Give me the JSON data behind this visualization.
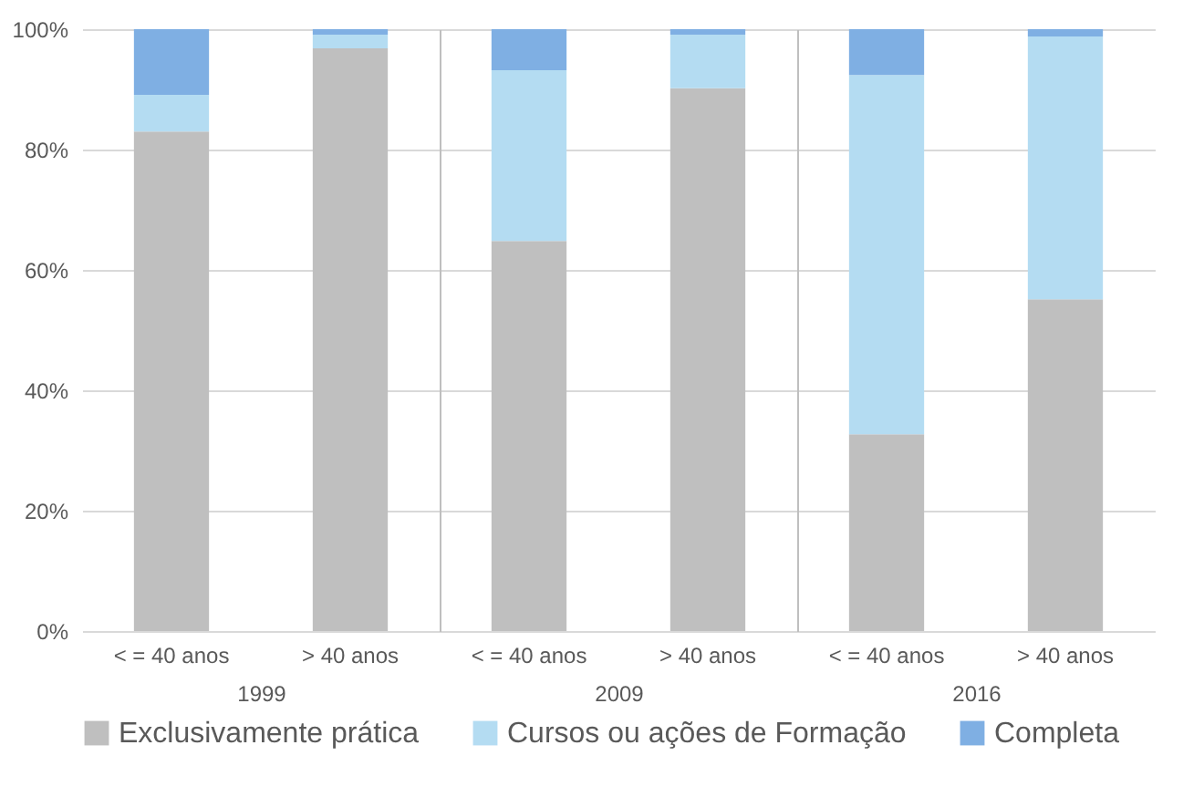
{
  "chart_data": [
    {
      "type": "bar",
      "stacked": true,
      "xlabel": "1999",
      "categories": [
        "< = 40 anos",
        "> 40 anos"
      ],
      "ylim": [
        0,
        100
      ],
      "yticks": [
        {
          "value": 0,
          "label": "0%"
        },
        {
          "value": 20,
          "label": "20%"
        },
        {
          "value": 40,
          "label": "40%"
        },
        {
          "value": 60,
          "label": "60%"
        },
        {
          "value": 80,
          "label": "80%"
        },
        {
          "value": 100,
          "label": "100%"
        }
      ],
      "grid": "y",
      "legend": "bottom",
      "series": [
        {
          "name": "Exclusivamente prática",
          "color": "#bfbfbf",
          "values": [
            83.0,
            96.8
          ]
        },
        {
          "name": "Cursos ou ações de Formação",
          "color": "#b4dcf2",
          "values": [
            6.1,
            2.3
          ]
        },
        {
          "name": "Completa",
          "color": "#7fafe3",
          "values": [
            10.9,
            0.9
          ]
        }
      ]
    },
    {
      "type": "bar",
      "stacked": true,
      "xlabel": "2009",
      "categories": [
        "< = 40 anos",
        "> 40 anos"
      ],
      "ylim": [
        0,
        100
      ],
      "yticks": [
        {
          "value": 0,
          "label": null
        },
        {
          "value": 20,
          "label": null
        },
        {
          "value": 40,
          "label": null
        },
        {
          "value": 60,
          "label": null
        },
        {
          "value": 80,
          "label": null
        },
        {
          "value": 100,
          "label": null
        }
      ],
      "grid": "y",
      "legend": "bottom",
      "tick_labels": "x",
      "series": [
        {
          "name": "Exclusivamente prática",
          "color": "#bfbfbf",
          "values": [
            64.8,
            90.2
          ]
        },
        {
          "name": "Cursos ou ações de Formação",
          "color": "#b4dcf2",
          "values": [
            28.4,
            8.9
          ]
        },
        {
          "name": "Completa",
          "color": "#7fafe3",
          "values": [
            6.8,
            0.9
          ]
        }
      ]
    },
    {
      "type": "bar",
      "stacked": true,
      "xlabel": "2016",
      "categories": [
        "< = 40 anos",
        "> 40 anos"
      ],
      "ylim": [
        0,
        100
      ],
      "yticks": [
        {
          "value": 0,
          "label": null
        },
        {
          "value": 20,
          "label": null
        },
        {
          "value": 40,
          "label": null
        },
        {
          "value": 60,
          "label": null
        },
        {
          "value": 80,
          "label": null
        },
        {
          "value": 100,
          "label": null
        }
      ],
      "grid": "y",
      "legend": "bottom",
      "tick_labels": "x",
      "series": [
        {
          "name": "Exclusivamente prática",
          "color": "#bfbfbf",
          "values": [
            32.7,
            55.1
          ]
        },
        {
          "name": "Cursos ou ações de Formação",
          "color": "#b4dcf2",
          "values": [
            59.7,
            43.7
          ]
        },
        {
          "name": "Completa",
          "color": "#7fafe3",
          "values": [
            7.6,
            1.2
          ]
        }
      ]
    }
  ]
}
